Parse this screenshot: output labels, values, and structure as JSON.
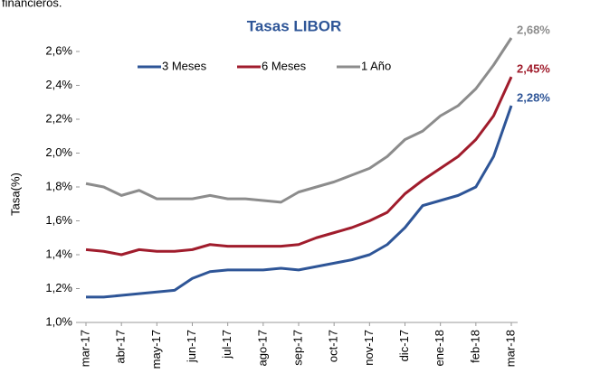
{
  "caption_top": "financieros.",
  "chart_data": {
    "type": "line",
    "title": "Tasas LIBOR",
    "y_label": "Tasa(%)",
    "categories": [
      "mar-17",
      null,
      "abr-17",
      null,
      "may-17",
      null,
      "jun-17",
      null,
      "jul-17",
      null,
      "ago-17",
      null,
      "sep-17",
      null,
      "oct-17",
      null,
      "nov-17",
      null,
      "dic-17",
      null,
      "ene-18",
      null,
      "feb-18",
      null,
      "mar-18"
    ],
    "ylim": [
      1.0,
      2.6
    ],
    "yticks": [
      {
        "value": 1.0,
        "label": "1,0%"
      },
      {
        "value": 1.2,
        "label": "1,2%"
      },
      {
        "value": 1.4,
        "label": "1,4%"
      },
      {
        "value": 1.6,
        "label": "1,6%"
      },
      {
        "value": 1.8,
        "label": "1,8%"
      },
      {
        "value": 2.0,
        "label": "2,0%"
      },
      {
        "value": 2.2,
        "label": "2,2%"
      },
      {
        "value": 2.4,
        "label": "2,4%"
      },
      {
        "value": 2.6,
        "label": "2,6%"
      }
    ],
    "legend": "top",
    "series": [
      {
        "name": "3 Meses",
        "color": "#2e5597",
        "values": [
          1.15,
          1.15,
          1.16,
          1.17,
          1.18,
          1.19,
          1.26,
          1.3,
          1.31,
          1.31,
          1.31,
          1.32,
          1.31,
          1.33,
          1.35,
          1.37,
          1.4,
          1.46,
          1.56,
          1.69,
          1.72,
          1.75,
          1.8,
          1.98,
          2.28
        ],
        "value_labels": [
          null,
          null,
          null,
          null,
          null,
          null,
          null,
          null,
          null,
          null,
          null,
          null,
          null,
          null,
          null,
          null,
          null,
          null,
          null,
          null,
          null,
          null,
          null,
          null,
          "2,28%"
        ]
      },
      {
        "name": "6 Meses",
        "color": "#a01c2c",
        "values": [
          1.43,
          1.42,
          1.4,
          1.43,
          1.42,
          1.42,
          1.43,
          1.46,
          1.45,
          1.45,
          1.45,
          1.45,
          1.46,
          1.5,
          1.53,
          1.56,
          1.6,
          1.65,
          1.76,
          1.84,
          1.91,
          1.98,
          2.08,
          2.22,
          2.45
        ],
        "value_labels": [
          null,
          null,
          null,
          null,
          null,
          null,
          null,
          null,
          null,
          null,
          null,
          null,
          null,
          null,
          null,
          null,
          null,
          null,
          null,
          null,
          null,
          null,
          null,
          null,
          "2,45%"
        ]
      },
      {
        "name": "1 Año",
        "color": "#8c8c8c",
        "values": [
          1.82,
          1.8,
          1.75,
          1.78,
          1.73,
          1.73,
          1.73,
          1.75,
          1.73,
          1.73,
          1.72,
          1.71,
          1.77,
          1.8,
          1.83,
          1.87,
          1.91,
          1.98,
          2.08,
          2.13,
          2.22,
          2.28,
          2.38,
          2.52,
          2.68
        ],
        "value_labels": [
          null,
          null,
          null,
          null,
          null,
          null,
          null,
          null,
          null,
          null,
          null,
          null,
          null,
          null,
          null,
          null,
          null,
          null,
          null,
          null,
          null,
          null,
          null,
          null,
          "2,68%"
        ]
      }
    ]
  }
}
